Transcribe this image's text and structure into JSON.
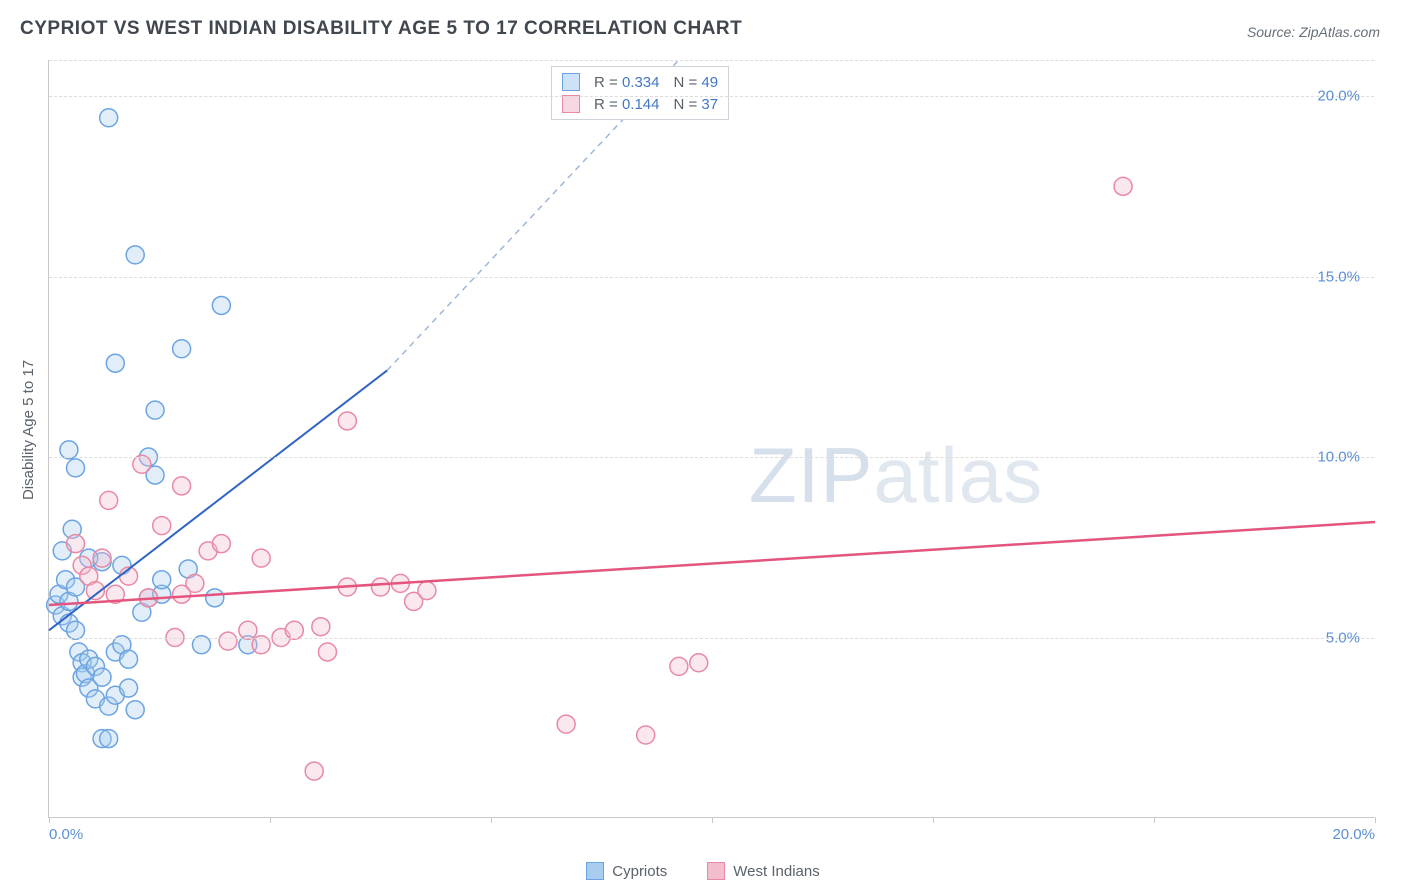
{
  "title": "CYPRIOT VS WEST INDIAN DISABILITY AGE 5 TO 17 CORRELATION CHART",
  "source_label": "Source: ZipAtlas.com",
  "y_axis_label": "Disability Age 5 to 17",
  "watermark": {
    "bold": "ZIP",
    "light": "atlas"
  },
  "chart": {
    "type": "scatter",
    "xlim": [
      0,
      20
    ],
    "ylim": [
      0,
      21
    ],
    "x_ticks": [
      0,
      3.33,
      6.66,
      10,
      13.33,
      16.66,
      20
    ],
    "x_tick_labels": {
      "0": "0.0%",
      "20": "20.0%"
    },
    "y_ticks": [
      5,
      10,
      15,
      20
    ],
    "y_tick_labels": [
      "5.0%",
      "10.0%",
      "15.0%",
      "20.0%"
    ],
    "grid_color": "#dcdcdc",
    "background_color": "#ffffff",
    "marker_radius": 9,
    "marker_stroke_width": 1.5,
    "marker_fill_opacity": 0.35,
    "series": [
      {
        "name": "Cypriots",
        "color_stroke": "#6ca4e2",
        "color_fill": "#a9cdee",
        "trend": {
          "x1": 0,
          "y1": 5.2,
          "x2": 5.1,
          "y2": 12.4,
          "dashed_ext_x": 9.5,
          "dashed_ext_y": 21,
          "color": "#2f64c5",
          "width": 2
        },
        "stats": {
          "R": "0.334",
          "N": "49"
        },
        "points": [
          [
            0.1,
            5.9
          ],
          [
            0.15,
            6.2
          ],
          [
            0.2,
            5.6
          ],
          [
            0.2,
            7.4
          ],
          [
            0.25,
            6.6
          ],
          [
            0.3,
            6.0
          ],
          [
            0.3,
            5.4
          ],
          [
            0.35,
            8.0
          ],
          [
            0.4,
            6.4
          ],
          [
            0.4,
            5.2
          ],
          [
            0.45,
            4.6
          ],
          [
            0.5,
            4.3
          ],
          [
            0.5,
            3.9
          ],
          [
            0.55,
            4.0
          ],
          [
            0.6,
            4.4
          ],
          [
            0.6,
            3.6
          ],
          [
            0.7,
            3.3
          ],
          [
            0.7,
            4.2
          ],
          [
            0.8,
            3.9
          ],
          [
            0.8,
            2.2
          ],
          [
            0.9,
            2.2
          ],
          [
            0.9,
            3.1
          ],
          [
            1.0,
            3.4
          ],
          [
            1.0,
            4.6
          ],
          [
            1.1,
            4.8
          ],
          [
            1.2,
            4.4
          ],
          [
            1.2,
            3.6
          ],
          [
            1.3,
            3.0
          ],
          [
            1.4,
            5.7
          ],
          [
            1.5,
            6.1
          ],
          [
            1.5,
            10.0
          ],
          [
            1.6,
            9.5
          ],
          [
            1.6,
            11.3
          ],
          [
            1.7,
            6.2
          ],
          [
            0.9,
            19.4
          ],
          [
            1.3,
            15.6
          ],
          [
            2.6,
            14.2
          ],
          [
            1.0,
            12.6
          ],
          [
            1.7,
            6.6
          ],
          [
            2.0,
            13.0
          ],
          [
            2.1,
            6.9
          ],
          [
            2.3,
            4.8
          ],
          [
            2.5,
            6.1
          ],
          [
            3.0,
            4.8
          ],
          [
            0.3,
            10.2
          ],
          [
            0.4,
            9.7
          ],
          [
            0.8,
            7.1
          ],
          [
            1.1,
            7.0
          ],
          [
            0.6,
            7.2
          ]
        ]
      },
      {
        "name": "West Indians",
        "color_stroke": "#e889a6",
        "color_fill": "#f3bdcd",
        "trend": {
          "x1": 0,
          "y1": 5.9,
          "x2": 20,
          "y2": 8.2,
          "color": "#e3547e",
          "width": 2.5
        },
        "stats": {
          "R": "0.144",
          "N": "37"
        },
        "points": [
          [
            0.4,
            7.6
          ],
          [
            0.5,
            7.0
          ],
          [
            0.6,
            6.7
          ],
          [
            0.7,
            6.3
          ],
          [
            0.8,
            7.2
          ],
          [
            0.9,
            8.8
          ],
          [
            1.0,
            6.2
          ],
          [
            1.2,
            6.7
          ],
          [
            1.4,
            9.8
          ],
          [
            1.7,
            8.1
          ],
          [
            2.0,
            9.2
          ],
          [
            2.4,
            7.4
          ],
          [
            2.6,
            7.6
          ],
          [
            2.2,
            6.5
          ],
          [
            2.7,
            4.9
          ],
          [
            3.0,
            5.2
          ],
          [
            3.2,
            4.8
          ],
          [
            3.5,
            5.0
          ],
          [
            3.7,
            5.2
          ],
          [
            4.1,
            5.3
          ],
          [
            4.5,
            11.0
          ],
          [
            5.0,
            6.4
          ],
          [
            5.3,
            6.5
          ],
          [
            5.5,
            6.0
          ],
          [
            5.7,
            6.3
          ],
          [
            4.5,
            6.4
          ],
          [
            4.0,
            1.3
          ],
          [
            7.8,
            2.6
          ],
          [
            9.0,
            2.3
          ],
          [
            9.5,
            4.2
          ],
          [
            9.8,
            4.3
          ],
          [
            3.2,
            7.2
          ],
          [
            4.2,
            4.6
          ],
          [
            16.2,
            17.5
          ],
          [
            2.0,
            6.2
          ],
          [
            1.5,
            6.1
          ],
          [
            1.9,
            5.0
          ]
        ]
      }
    ]
  },
  "legend_bottom": [
    {
      "label": "Cypriots",
      "stroke": "#6ca4e2",
      "fill": "#a9cdee"
    },
    {
      "label": "West Indians",
      "stroke": "#e889a6",
      "fill": "#f3bdcd"
    }
  ],
  "stats_legend": [
    {
      "swatch_stroke": "#6ca4e2",
      "swatch_fill": "#cde2f6",
      "R": "0.334",
      "N": "49"
    },
    {
      "swatch_stroke": "#e889a6",
      "swatch_fill": "#f7d8e2",
      "R": "0.144",
      "N": "37"
    }
  ]
}
